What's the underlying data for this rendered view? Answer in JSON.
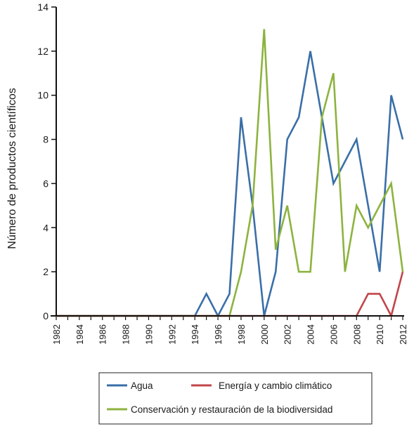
{
  "chart_data": {
    "type": "line",
    "title": "",
    "xlabel": "",
    "ylabel": "Número de productos científicos",
    "ylim": [
      0,
      14
    ],
    "xlim": [
      1982,
      2012
    ],
    "y_ticks": [
      0,
      2,
      4,
      6,
      8,
      10,
      12,
      14
    ],
    "x_ticks": [
      1982,
      1984,
      1986,
      1988,
      1990,
      1992,
      1994,
      1996,
      1998,
      2000,
      2002,
      2004,
      2006,
      2008,
      2010,
      2012
    ],
    "x_tick_labels": [
      "1982",
      "1984",
      "1986",
      "1988",
      "1990",
      "1992",
      "1994",
      "1996",
      "1998",
      "2000",
      "2002",
      "2004",
      "2006",
      "2008",
      "2010",
      "2012"
    ],
    "y_tick_labels": [
      "0",
      "2",
      "4",
      "6",
      "8",
      "10",
      "12",
      "14"
    ],
    "grid": false,
    "legend_position": "bottom",
    "x": [
      1982,
      1983,
      1984,
      1985,
      1986,
      1987,
      1988,
      1989,
      1990,
      1991,
      1992,
      1993,
      1994,
      1995,
      1996,
      1997,
      1998,
      1999,
      2000,
      2001,
      2002,
      2003,
      2004,
      2005,
      2006,
      2007,
      2008,
      2009,
      2010,
      2011,
      2012
    ],
    "series": [
      {
        "name": "Agua",
        "color": "#3a6fa8",
        "values": [
          0,
          0,
          0,
          0,
          0,
          0,
          0,
          0,
          0,
          0,
          0,
          0,
          0,
          1,
          0,
          1,
          9,
          5,
          0,
          2,
          8,
          9,
          12,
          9,
          6,
          7,
          8,
          5,
          2,
          10,
          8
        ]
      },
      {
        "name": "Energía y cambio climático",
        "color": "#c0464b",
        "values": [
          0,
          0,
          0,
          0,
          0,
          0,
          0,
          0,
          0,
          0,
          0,
          0,
          0,
          0,
          0,
          0,
          0,
          0,
          0,
          0,
          0,
          0,
          0,
          0,
          0,
          0,
          0,
          1,
          1,
          0,
          2
        ]
      },
      {
        "name": "Conservación y restauración de la biodiversidad",
        "color": "#8db33f",
        "values": [
          0,
          0,
          0,
          0,
          0,
          0,
          0,
          0,
          0,
          0,
          0,
          0,
          0,
          0,
          0,
          0,
          2,
          5,
          13,
          3,
          5,
          2,
          2,
          9,
          11,
          2,
          5,
          4,
          5,
          6,
          2
        ]
      }
    ],
    "legend": {
      "row1": [
        "Agua",
        "Energía y cambio climático"
      ],
      "row2": [
        "Conservación y restauración de la biodiversidad"
      ]
    }
  }
}
